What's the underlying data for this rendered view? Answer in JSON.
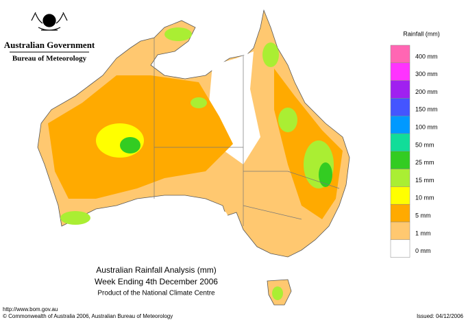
{
  "header": {
    "government": "Australian Government",
    "agency": "Bureau of Meteorology"
  },
  "legend": {
    "title": "Rainfall (mm)",
    "items": [
      {
        "label": "400 mm",
        "color": "#ff66b3"
      },
      {
        "label": "300 mm",
        "color": "#ff33ff"
      },
      {
        "label": "200 mm",
        "color": "#a020f0"
      },
      {
        "label": "150 mm",
        "color": "#4455ff"
      },
      {
        "label": "100 mm",
        "color": "#0099ff"
      },
      {
        "label": "50 mm",
        "color": "#11dd99"
      },
      {
        "label": "25 mm",
        "color": "#33cc22"
      },
      {
        "label": "15 mm",
        "color": "#aaee33"
      },
      {
        "label": "10 mm",
        "color": "#ffff00"
      },
      {
        "label": "5 mm",
        "color": "#ffaa00"
      },
      {
        "label": "1 mm",
        "color": "#ffc870"
      },
      {
        "label": "0 mm",
        "color": "#ffffff"
      }
    ]
  },
  "title": {
    "line1": "Australian Rainfall Analysis (mm)",
    "line2": "Week Ending 4th December 2006",
    "line3": "Product of the National Climate Centre"
  },
  "footer": {
    "url": "http://www.bom.gov.au",
    "copyright": "© Commonwealth of Australia 2006, Australian Bureau of Meteorology",
    "issued": "Issued: 04/12/2006"
  }
}
